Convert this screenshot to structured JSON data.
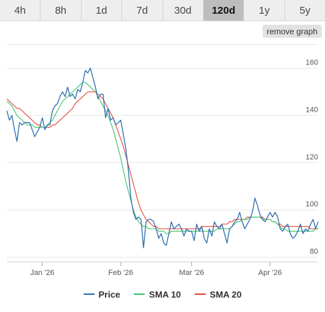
{
  "range_tabs": [
    {
      "label": "4h",
      "active": false
    },
    {
      "label": "8h",
      "active": false
    },
    {
      "label": "1d",
      "active": false
    },
    {
      "label": "7d",
      "active": false
    },
    {
      "label": "30d",
      "active": false
    },
    {
      "label": "120d",
      "active": true
    },
    {
      "label": "1y",
      "active": false
    },
    {
      "label": "5y",
      "active": false
    }
  ],
  "remove_graph_label": "remove graph",
  "chart_data": {
    "type": "line",
    "x_tick_labels": [
      "Jan '26",
      "Feb '26",
      "Mar '26",
      "Apr '26"
    ],
    "x_tick_index": [
      14,
      45,
      73,
      104
    ],
    "y_ticks": [
      80,
      100,
      120,
      140,
      160
    ],
    "ylim": [
      78,
      170
    ],
    "grid": true,
    "legend_position": "bottom",
    "series": [
      {
        "name": "Price",
        "color": "#2f6fae",
        "values": [
          142,
          138,
          140,
          134,
          129,
          137,
          136,
          137,
          137,
          137,
          134,
          131,
          133,
          135,
          139,
          134,
          136,
          136,
          142,
          144,
          145,
          148,
          150,
          148,
          152,
          148,
          149,
          147,
          151,
          150,
          154,
          159,
          158,
          160,
          156,
          152,
          147,
          149,
          149,
          139,
          143,
          138,
          139,
          136,
          137,
          138,
          132,
          126,
          117,
          105,
          99,
          96,
          97,
          96,
          84,
          95,
          96,
          96,
          95,
          92,
          88,
          90,
          86,
          85,
          90,
          95,
          92,
          93,
          94,
          92,
          89,
          92,
          91,
          91,
          87,
          94,
          91,
          93,
          88,
          86,
          92,
          89,
          95,
          93,
          92,
          94,
          90,
          86,
          92,
          93,
          95,
          96,
          99,
          95,
          92,
          94,
          96,
          99,
          105,
          102,
          98,
          96,
          95,
          97,
          99,
          97,
          99,
          97,
          92,
          91,
          93,
          94,
          90,
          88,
          89,
          91,
          94,
          90,
          92,
          91,
          94,
          96,
          92,
          95
        ]
      },
      {
        "name": "SMA 10",
        "color": "#3bc26b",
        "values": [
          146,
          145,
          144,
          142,
          140,
          139,
          138,
          137,
          136,
          136,
          136,
          135,
          135,
          135,
          135,
          135,
          136,
          137,
          138,
          140,
          142,
          144,
          146,
          147,
          148,
          149,
          150,
          151,
          152,
          153,
          154,
          154,
          153,
          152,
          151,
          150,
          148,
          146,
          144,
          142,
          140,
          137,
          134,
          130,
          126,
          122,
          117,
          112,
          108,
          104,
          100,
          97,
          95,
          94,
          93,
          93,
          92,
          92,
          92,
          92,
          91,
          91,
          91,
          90,
          90,
          91,
          91,
          91,
          91,
          91,
          91,
          91,
          91,
          91,
          91,
          91,
          91,
          91,
          91,
          91,
          91,
          91,
          91,
          92,
          92,
          92,
          92,
          92,
          92,
          93,
          94,
          95,
          95,
          96,
          96,
          96,
          97,
          97,
          97,
          97,
          97,
          96,
          96,
          96,
          96,
          95,
          95,
          94,
          93,
          92,
          92,
          91,
          91,
          91,
          91,
          91,
          91,
          91,
          91,
          91,
          91,
          91,
          92,
          92
        ]
      },
      {
        "name": "SMA 20",
        "color": "#e0463a",
        "values": [
          147,
          146,
          145,
          144,
          143,
          143,
          142,
          141,
          140,
          139,
          138,
          137,
          136,
          136,
          135,
          135,
          135,
          135,
          136,
          136,
          137,
          138,
          139,
          140,
          141,
          142,
          143,
          145,
          146,
          147,
          148,
          149,
          150,
          150,
          150,
          150,
          149,
          148,
          147,
          145,
          143,
          141,
          139,
          136,
          133,
          130,
          127,
          123,
          119,
          115,
          111,
          107,
          103,
          100,
          98,
          96,
          95,
          94,
          93,
          93,
          92,
          92,
          92,
          92,
          92,
          92,
          92,
          92,
          92,
          92,
          92,
          92,
          92,
          92,
          92,
          92,
          92,
          93,
          93,
          93,
          93,
          93,
          93,
          93,
          93,
          94,
          94,
          94,
          95,
          95,
          96,
          96,
          96,
          96,
          96,
          97,
          97,
          97,
          97,
          97,
          97,
          97,
          96,
          96,
          96,
          95,
          95,
          94,
          94,
          93,
          93,
          93,
          93,
          93,
          93,
          93,
          93,
          93,
          93,
          93,
          92,
          92,
          92,
          92
        ]
      }
    ]
  }
}
